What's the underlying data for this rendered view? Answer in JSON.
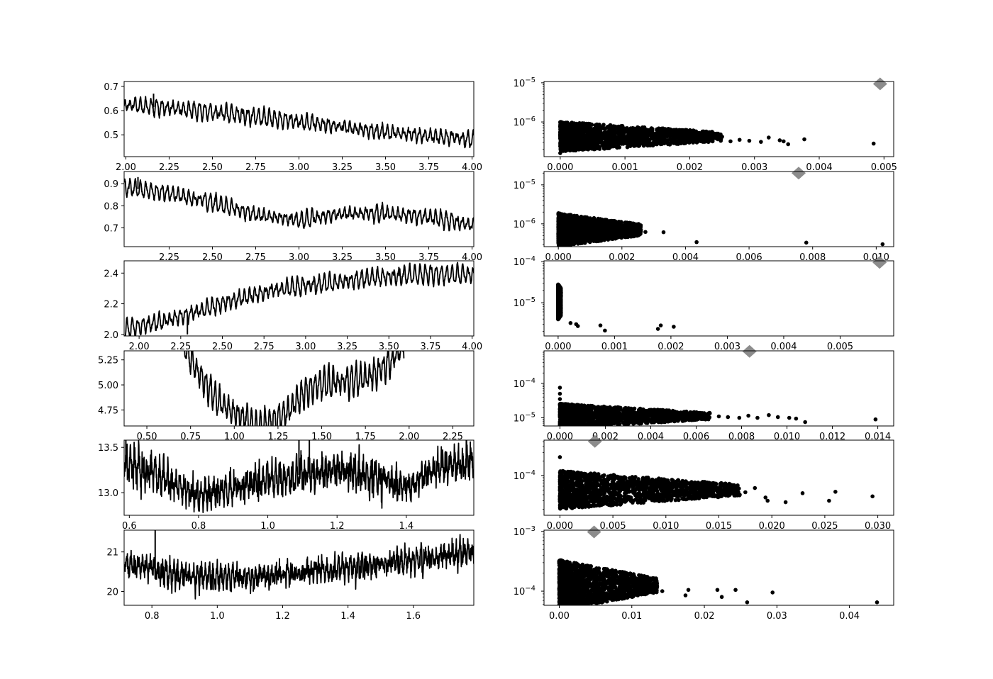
{
  "chart_data": [
    {
      "type": "line",
      "position": "row-1-left",
      "xlim": [
        1.99,
        4.01
      ],
      "ylim": [
        0.41,
        0.72
      ],
      "xticks": [
        2.0,
        2.25,
        2.5,
        2.75,
        3.0,
        3.25,
        3.5,
        3.75,
        4.0
      ],
      "xtick_labels": [
        "2.00",
        "2.25",
        "2.50",
        "2.75",
        "3.00",
        "3.25",
        "3.50",
        "3.75",
        "4.00"
      ],
      "yticks": [
        0.5,
        0.6,
        0.7
      ],
      "ytick_labels": [
        "0.5",
        "0.6",
        "0.7"
      ],
      "trend": {
        "x": [
          1.99,
          2.5,
          3.0,
          3.5,
          4.01
        ],
        "y": [
          0.625,
          0.595,
          0.555,
          0.51,
          0.48
        ]
      },
      "oscillation_amplitude": 0.025,
      "oscillation_period": 0.031,
      "noise": 0.004,
      "spikes": [
        {
          "x": 2.16,
          "y": 0.67
        }
      ]
    },
    {
      "type": "line",
      "position": "row-2-left",
      "xlim": [
        1.99,
        4.01
      ],
      "ylim": [
        0.615,
        0.955
      ],
      "xticks": [
        2.25,
        2.5,
        2.75,
        3.0,
        3.25,
        3.5,
        3.75,
        4.0
      ],
      "xtick_labels": [
        "2.25",
        "2.50",
        "2.75",
        "3.00",
        "3.25",
        "3.50",
        "3.75",
        "4.00"
      ],
      "yticks": [
        0.7,
        0.8,
        0.9
      ],
      "ytick_labels": [
        "0.7",
        "0.8",
        "0.9"
      ],
      "trend": {
        "x": [
          1.99,
          2.25,
          2.5,
          2.75,
          3.0,
          3.25,
          3.5,
          3.75,
          4.01
        ],
        "y": [
          0.885,
          0.855,
          0.815,
          0.76,
          0.735,
          0.765,
          0.765,
          0.75,
          0.71
        ]
      },
      "oscillation_amplitude": 0.028,
      "oscillation_period": 0.031,
      "noise": 0.004,
      "spikes": [
        {
          "x": 2.07,
          "y": 0.93
        }
      ]
    },
    {
      "type": "line",
      "position": "row-3-left",
      "xlim": [
        1.91,
        4.01
      ],
      "ylim": [
        1.99,
        2.48
      ],
      "xticks": [
        2.0,
        2.25,
        2.5,
        2.75,
        3.0,
        3.25,
        3.5,
        3.75,
        4.0
      ],
      "xtick_labels": [
        "2.00",
        "2.25",
        "2.50",
        "2.75",
        "3.00",
        "3.25",
        "3.50",
        "3.75",
        "4.00"
      ],
      "yticks": [
        2.0,
        2.2,
        2.4
      ],
      "ytick_labels": [
        "2.0",
        "2.2",
        "2.4"
      ],
      "trend": {
        "x": [
          1.91,
          2.2,
          2.5,
          2.8,
          3.1,
          3.4,
          3.7,
          4.01
        ],
        "y": [
          2.03,
          2.1,
          2.2,
          2.29,
          2.33,
          2.37,
          2.39,
          2.39
        ]
      },
      "oscillation_amplitude": 0.045,
      "oscillation_period": 0.032,
      "noise": 0.006,
      "spikes": [
        {
          "x": 2.29,
          "y": 2.0
        },
        {
          "x": 3.56,
          "y": 2.44
        }
      ]
    },
    {
      "type": "line",
      "position": "row-4-left",
      "xlim": [
        0.37,
        2.37
      ],
      "ylim": [
        4.59,
        5.34
      ],
      "xticks": [
        0.5,
        0.75,
        1.0,
        1.25,
        1.5,
        1.75,
        2.0,
        2.25
      ],
      "xtick_labels": [
        "0.50",
        "0.75",
        "1.00",
        "1.25",
        "1.50",
        "1.75",
        "2.00",
        "2.25"
      ],
      "yticks": [
        4.75,
        5.0,
        5.25
      ],
      "ytick_labels": [
        "4.75",
        "5.00",
        "5.25"
      ],
      "x_data_range": [
        0.7,
        1.97
      ],
      "trend": {
        "x": [
          0.7,
          0.8,
          0.9,
          1.0,
          1.1,
          1.2,
          1.3,
          1.4,
          1.5,
          1.6,
          1.7,
          1.8,
          1.9,
          1.97
        ],
        "y": [
          5.45,
          5.1,
          4.85,
          4.72,
          4.62,
          4.6,
          4.72,
          4.92,
          5.02,
          5.02,
          5.05,
          5.1,
          5.25,
          5.4
        ]
      },
      "oscillation_amplitude": 0.11,
      "oscillation_period": 0.026,
      "noise": 0.012,
      "spikes": []
    },
    {
      "type": "line",
      "position": "row-5-left",
      "xlim": [
        0.585,
        1.595
      ],
      "ylim": [
        12.75,
        13.58
      ],
      "xticks": [
        0.6,
        0.8,
        1.0,
        1.2,
        1.4
      ],
      "xtick_labels": [
        "0.6",
        "0.8",
        "1.0",
        "1.2",
        "1.4"
      ],
      "yticks": [
        13.0,
        13.5
      ],
      "ytick_labels": [
        "13.0",
        "13.5"
      ],
      "trend": {
        "x": [
          0.585,
          0.7,
          0.8,
          0.9,
          1.0,
          1.1,
          1.2,
          1.3,
          1.4,
          1.5,
          1.595
        ],
        "y": [
          13.35,
          13.15,
          12.95,
          13.05,
          13.15,
          13.2,
          13.25,
          13.2,
          13.05,
          13.3,
          13.35
        ]
      },
      "oscillation_amplitude": 0.1,
      "oscillation_period": 0.012,
      "noise": 0.07,
      "spikes": [
        {
          "x": 0.59,
          "y": 13.58
        },
        {
          "x": 1.09,
          "y": 13.58
        },
        {
          "x": 1.12,
          "y": 13.58
        }
      ]
    },
    {
      "type": "line",
      "position": "row-6-left",
      "xlim": [
        0.715,
        1.785
      ],
      "ylim": [
        19.65,
        21.55
      ],
      "xticks": [
        0.8,
        1.0,
        1.2,
        1.4,
        1.6
      ],
      "xtick_labels": [
        "0.8",
        "1.0",
        "1.2",
        "1.4",
        "1.6"
      ],
      "yticks": [
        20.0,
        21.0
      ],
      "ytick_labels": [
        "20",
        "21"
      ],
      "trend": {
        "x": [
          0.715,
          0.9,
          1.1,
          1.3,
          1.5,
          1.785
        ],
        "y": [
          20.7,
          20.4,
          20.35,
          20.5,
          20.7,
          21.0
        ]
      },
      "oscillation_amplitude": 0.17,
      "oscillation_period": 0.012,
      "noise": 0.12,
      "spikes": [
        {
          "x": 0.81,
          "y": 21.55
        }
      ]
    },
    {
      "type": "scatter",
      "position": "row-1-right",
      "yscale": "log",
      "xlim": [
        -0.00025,
        0.00515
      ],
      "ylim": [
        1.3e-07,
        1.08e-05
      ],
      "xticks": [
        0.0,
        0.001,
        0.002,
        0.003,
        0.004,
        0.005
      ],
      "xtick_labels": [
        "0.000",
        "0.001",
        "0.002",
        "0.003",
        "0.004",
        "0.005"
      ],
      "yticks": [
        {
          "value": 1e-06,
          "base": "10",
          "exp": "−6"
        },
        {
          "value": 1e-05,
          "base": "10",
          "exp": "−5"
        }
      ],
      "cluster": {
        "x_end": 0.0025,
        "y_center": 4.2e-07,
        "spread_start": 0.4,
        "spread_end": 0.12
      },
      "outliers": [
        [
          0.0,
          1.6e-07
        ],
        [
          0.00263,
          3.2e-07
        ],
        [
          0.00277,
          3.5e-07
        ],
        [
          0.00292,
          3.3e-07
        ],
        [
          0.0031,
          3.1e-07
        ],
        [
          0.00322,
          4e-07
        ],
        [
          0.00339,
          3.4e-07
        ],
        [
          0.00345,
          3.2e-07
        ],
        [
          0.00352,
          2.7e-07
        ],
        [
          0.00377,
          3.6e-07
        ],
        [
          0.00484,
          2.8e-07
        ]
      ],
      "marker": {
        "x": 0.00494,
        "y": 9.4e-06
      }
    },
    {
      "type": "scatter",
      "position": "row-2-right",
      "yscale": "log",
      "xlim": [
        -0.00045,
        0.01055
      ],
      "ylim": [
        2.6e-07,
        2.2e-05
      ],
      "xticks": [
        0.0,
        0.002,
        0.004,
        0.006,
        0.008,
        0.01
      ],
      "xtick_labels": [
        "0.000",
        "0.002",
        "0.004",
        "0.006",
        "0.008",
        "0.010"
      ],
      "yticks": [
        {
          "value": 1e-06,
          "base": "10",
          "exp": "−6"
        },
        {
          "value": 1e-05,
          "base": "10",
          "exp": "−5"
        }
      ],
      "cluster": {
        "x_end": 0.0026,
        "y_center": 7e-07,
        "spread_start": 0.45,
        "spread_end": 0.15
      },
      "outliers": [
        [
          0.00274,
          6.2e-07
        ],
        [
          0.00331,
          6.1e-07
        ],
        [
          0.00435,
          3.4e-07
        ],
        [
          0.0078,
          3.3e-07
        ],
        [
          0.0102,
          3e-07
        ]
      ],
      "marker": {
        "x": 0.00756,
        "y": 2e-05
      }
    },
    {
      "type": "scatter",
      "position": "row-3-right",
      "yscale": "log",
      "xlim": [
        -0.00025,
        0.00595
      ],
      "ylim": [
        1.55e-06,
        0.000105
      ],
      "xticks": [
        0.0,
        0.001,
        0.002,
        0.003,
        0.004,
        0.005
      ],
      "xtick_labels": [
        "0.000",
        "0.001",
        "0.002",
        "0.003",
        "0.004",
        "0.005"
      ],
      "yticks": [
        {
          "value": 1e-05,
          "base": "10",
          "exp": "−5"
        },
        {
          "value": 0.0001,
          "base": "10",
          "exp": "−4"
        }
      ],
      "cluster": {
        "x_end": 5e-05,
        "y_center": 1.05e-05,
        "spread_start": 0.45,
        "spread_end": 0.35
      },
      "outliers": [
        [
          0.00022,
          3.2e-06
        ],
        [
          0.00032,
          3e-06
        ],
        [
          0.00035,
          2.7e-06
        ],
        [
          0.00075,
          2.8e-06
        ],
        [
          0.00083,
          2.1e-06
        ],
        [
          0.00177,
          2.3e-06
        ],
        [
          0.00182,
          2.8e-06
        ],
        [
          0.00205,
          2.6e-06
        ]
      ],
      "marker": {
        "x": 0.0057,
        "y": 9.6e-05
      }
    },
    {
      "type": "scatter",
      "position": "row-4-right",
      "yscale": "log",
      "xlim": [
        -0.0007,
        0.0147
      ],
      "ylim": [
        5.8e-06,
        0.00088
      ],
      "xticks": [
        0.0,
        0.002,
        0.004,
        0.006,
        0.008,
        0.01,
        0.012,
        0.014
      ],
      "xtick_labels": [
        "0.000",
        "0.002",
        "0.004",
        "0.006",
        "0.008",
        "0.010",
        "0.012",
        "0.014"
      ],
      "yticks": [
        {
          "value": 1e-05,
          "base": "10",
          "exp": "−5"
        },
        {
          "value": 0.0001,
          "base": "10",
          "exp": "−4"
        }
      ],
      "cluster": {
        "x_end": 0.0066,
        "y_center": 1.12e-05,
        "spread_start": 0.38,
        "spread_end": 0.1
      },
      "outliers": [
        [
          0.0,
          7.5e-05
        ],
        [
          0.0,
          5e-05
        ],
        [
          0.0,
          3.5e-05
        ],
        [
          0.0,
          2.5e-05
        ],
        [
          0.007,
          1.1e-05
        ],
        [
          0.0074,
          1.05e-05
        ],
        [
          0.0079,
          1e-05
        ],
        [
          0.0083,
          1.15e-05
        ],
        [
          0.0087,
          1e-05
        ],
        [
          0.0092,
          1.2e-05
        ],
        [
          0.0096,
          1.05e-05
        ],
        [
          0.0101,
          1e-05
        ],
        [
          0.0104,
          9.5e-06
        ],
        [
          0.0108,
          7.5e-06
        ],
        [
          0.0139,
          9e-06
        ]
      ],
      "marker": {
        "x": 0.00835,
        "y": 0.00085
      }
    },
    {
      "type": "scatter",
      "position": "row-5-right",
      "yscale": "log",
      "xlim": [
        -0.0015,
        0.0315
      ],
      "ylim": [
        1.5e-05,
        0.00054
      ],
      "xticks": [
        0.0,
        0.005,
        0.01,
        0.015,
        0.02,
        0.025,
        0.03
      ],
      "xtick_labels": [
        "0.000",
        "0.005",
        "0.010",
        "0.015",
        "0.020",
        "0.025",
        "0.030"
      ],
      "yticks": [
        {
          "value": 0.0001,
          "base": "10",
          "exp": "−4"
        }
      ],
      "cluster": {
        "x_end": 0.017,
        "y_center": 5e-05,
        "spread_start": 0.42,
        "spread_end": 0.12
      },
      "outliers": [
        [
          0.0,
          0.00024
        ],
        [
          0.0175,
          4.5e-05
        ],
        [
          0.0184,
          5.5e-05
        ],
        [
          0.0194,
          3.5e-05
        ],
        [
          0.0196,
          3e-05
        ],
        [
          0.0213,
          2.8e-05
        ],
        [
          0.0229,
          4.3e-05
        ],
        [
          0.0254,
          3e-05
        ],
        [
          0.026,
          4.6e-05
        ],
        [
          0.0295,
          3.7e-05
        ]
      ],
      "marker": {
        "x": 0.0033,
        "y": 0.00051
      }
    },
    {
      "type": "scatter",
      "position": "row-6-right",
      "yscale": "log",
      "xlim": [
        -0.0021,
        0.0461
      ],
      "ylim": [
        5.8e-05,
        0.00105
      ],
      "xticks": [
        0.0,
        0.01,
        0.02,
        0.03,
        0.04
      ],
      "xtick_labels": [
        "0.00",
        "0.01",
        "0.02",
        "0.03",
        "0.04"
      ],
      "yticks": [
        {
          "value": 0.0001,
          "base": "10",
          "exp": "−4"
        },
        {
          "value": 0.001,
          "base": "10",
          "exp": "−3"
        }
      ],
      "cluster": {
        "x_end": 0.0135,
        "y_center": 0.000125,
        "spread_start": 0.45,
        "spread_end": 0.12
      },
      "outliers": [
        [
          0.0,
          0.00032
        ],
        [
          0.0005,
          0.00028
        ],
        [
          0.0142,
          0.0001
        ],
        [
          0.0174,
          8.5e-05
        ],
        [
          0.0178,
          0.000105
        ],
        [
          0.0218,
          0.000105
        ],
        [
          0.0224,
          8e-05
        ],
        [
          0.0243,
          0.000105
        ],
        [
          0.0259,
          6.5e-05
        ],
        [
          0.0294,
          9.5e-05
        ],
        [
          0.0438,
          6.5e-05
        ]
      ],
      "marker": {
        "x": 0.0048,
        "y": 0.00098
      }
    }
  ],
  "colors": {
    "line": "#000000",
    "points": "#000000",
    "marker": "#8c8c8c"
  }
}
